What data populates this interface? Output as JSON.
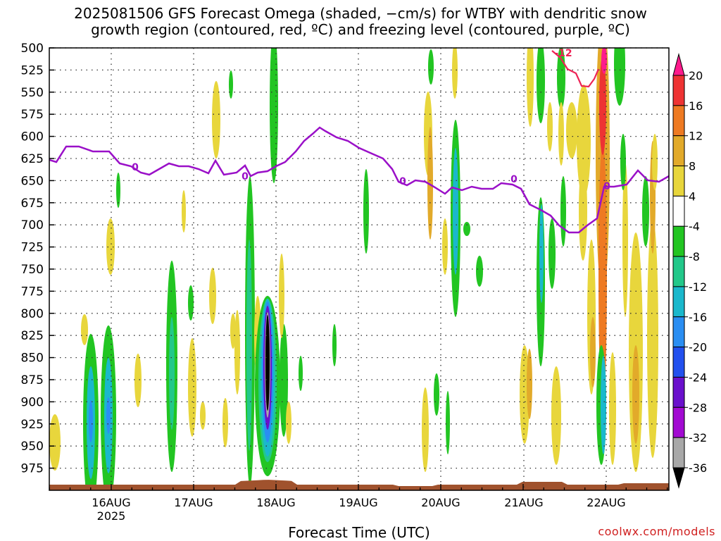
{
  "title_line1": "2025081506 GFS Forecast Omega (shaded, −cm/s) for WTBY with dendritic snow",
  "title_line2": "growth region (contoured, red, ºC) and freezing level (contoured, purple, ºC)",
  "xlabel": "Forecast Time (UTC)",
  "credit": "coolwx.com/models",
  "chart_data": {
    "type": "heatmap",
    "y_axis": {
      "ticks": [
        500,
        525,
        550,
        575,
        600,
        625,
        650,
        675,
        700,
        725,
        750,
        775,
        800,
        825,
        850,
        875,
        900,
        925,
        950,
        975
      ],
      "inverted": true,
      "range": [
        500,
        1000
      ]
    },
    "x_axis": {
      "tick_labels": [
        "16AUG",
        "17AUG",
        "18AUG",
        "19AUG",
        "20AUG",
        "21AUG",
        "22AUG"
      ],
      "year_label": "2025"
    },
    "grid": true,
    "colorbar": {
      "labels": [
        "20",
        "16",
        "12",
        "8",
        "4",
        "-4",
        "-8",
        "-12",
        "-16",
        "-20",
        "-24",
        "-28",
        "-32",
        "-36"
      ],
      "colors": [
        "#ff1a8c",
        "#ee3333",
        "#ee7a22",
        "#e2aa2a",
        "#e8d63c",
        "#ffffff",
        "#22c522",
        "#22c88a",
        "#1ab8cc",
        "#2a8ef2",
        "#2250ee",
        "#6a10cc",
        "#a20ad2",
        "#a8a8a8",
        "#000000"
      ]
    },
    "contour_labels": {
      "freezing": "0",
      "dendritic": "-12"
    },
    "colors": {
      "freezing_level": "#9a10c8",
      "dendritic": "#ee2255",
      "terrain": "#a0522d"
    }
  }
}
